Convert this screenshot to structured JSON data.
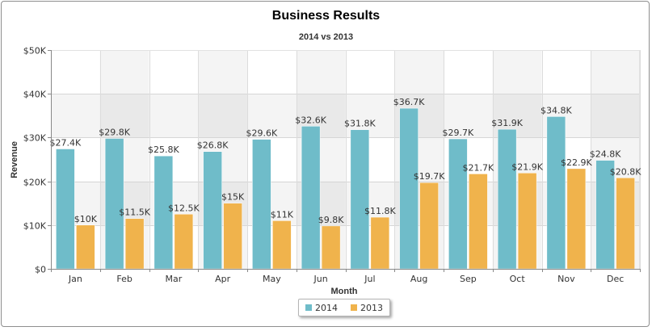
{
  "chart_data": {
    "type": "bar",
    "title": "Business Results",
    "subtitle": "2014 vs 2013",
    "xlabel": "Month",
    "ylabel": "Revenue",
    "ylim": [
      0,
      50000
    ],
    "yticks": [
      0,
      10000,
      20000,
      30000,
      40000,
      50000
    ],
    "ytick_labels": [
      "$0",
      "$10K",
      "$20K",
      "$30K",
      "$40K",
      "$50K"
    ],
    "categories": [
      "Jan",
      "Feb",
      "Mar",
      "Apr",
      "May",
      "Jun",
      "Jul",
      "Aug",
      "Sep",
      "Oct",
      "Nov",
      "Dec"
    ],
    "series": [
      {
        "name": "2014",
        "color": "#6fbcc9",
        "values": [
          27400,
          29800,
          25800,
          26800,
          29600,
          32600,
          31800,
          36700,
          29700,
          31900,
          34800,
          24800
        ],
        "labels": [
          "$27.4K",
          "$29.8K",
          "$25.8K",
          "$26.8K",
          "$29.6K",
          "$32.6K",
          "$31.8K",
          "$36.7K",
          "$29.7K",
          "$31.9K",
          "$34.8K",
          "$24.8K"
        ]
      },
      {
        "name": "2013",
        "color": "#f0b34c",
        "values": [
          10000,
          11500,
          12500,
          15000,
          11000,
          9800,
          11800,
          19700,
          21700,
          21900,
          22900,
          20800
        ],
        "labels": [
          "$10K",
          "$11.5K",
          "$12.5K",
          "$15K",
          "$11K",
          "$9.8K",
          "$11.8K",
          "$19.7K",
          "$21.7K",
          "$21.9K",
          "$22.9K",
          "$20.8K"
        ]
      }
    ],
    "grid": true,
    "legend_position": "bottom-center"
  }
}
